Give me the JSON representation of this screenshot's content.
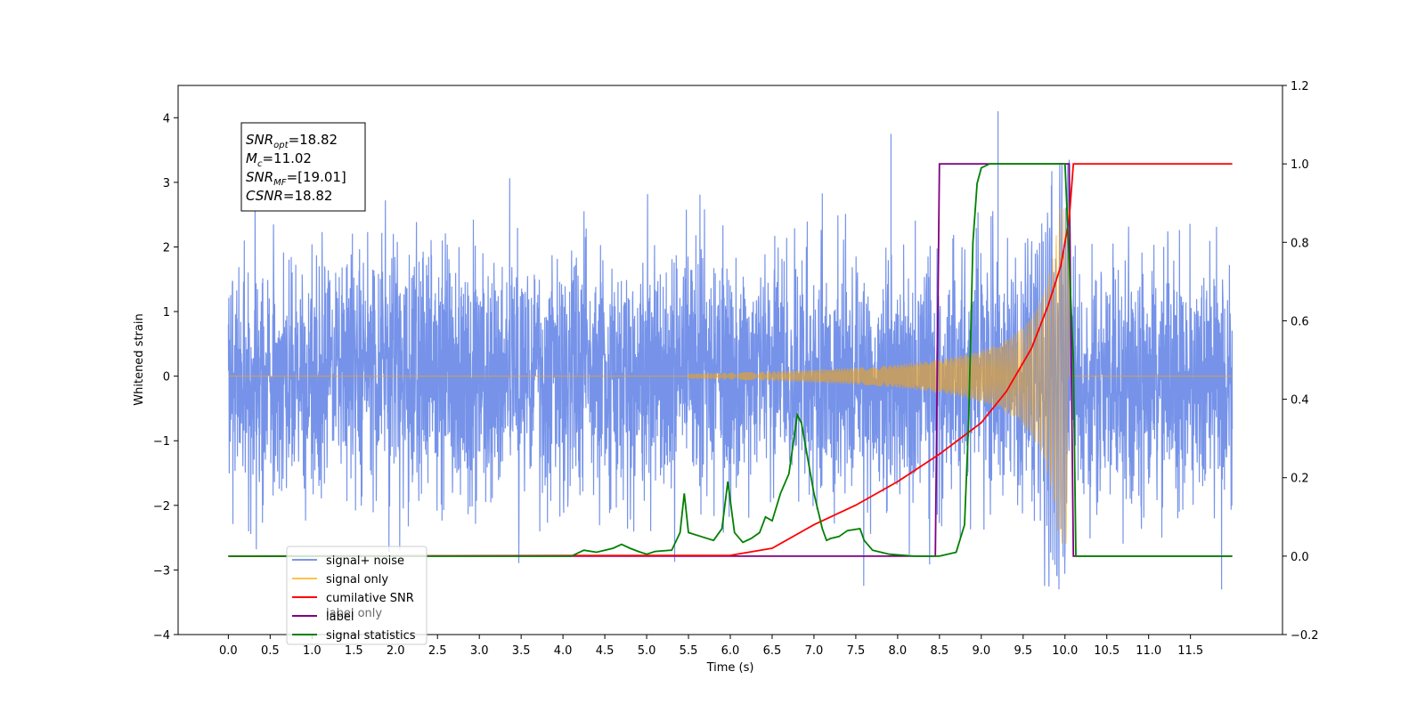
{
  "chart_data": {
    "type": "line",
    "xlabel": "Time (s)",
    "ylabel": "Whitened strain",
    "xlim": [
      -0.6,
      12.6
    ],
    "ylim": [
      -4,
      4.5
    ],
    "y2lim": [
      -0.2,
      1.2
    ],
    "x_ticks": [
      0.0,
      0.5,
      1.0,
      1.5,
      2.0,
      2.5,
      3.0,
      3.5,
      4.0,
      4.5,
      5.0,
      5.5,
      6.0,
      6.5,
      7.0,
      7.5,
      8.0,
      8.5,
      9.0,
      9.5,
      10.0,
      10.5,
      11.0,
      11.5
    ],
    "x_tick_labels": [
      "0.0",
      "0.5",
      "1.0",
      "1.5",
      "2.0",
      "2.5",
      "3.0",
      "3.5",
      "4.0",
      "4.5",
      "5.0",
      "5.5",
      "6.0",
      "6.5",
      "7.0",
      "7.5",
      "8.0",
      "8.5",
      "9.0",
      "9.5",
      "10.0",
      "10.5",
      "11.0",
      "11.5"
    ],
    "y_ticks": [
      -4,
      -3,
      -2,
      -1,
      0,
      1,
      2,
      3,
      4
    ],
    "y_tick_labels": [
      "−4",
      "−3",
      "−2",
      "−1",
      "0",
      "1",
      "2",
      "3",
      "4"
    ],
    "y2_ticks": [
      -0.2,
      0.0,
      0.2,
      0.4,
      0.6,
      0.8,
      1.0,
      1.2
    ],
    "y2_tick_labels": [
      "−0.2",
      "0.0",
      "0.2",
      "0.4",
      "0.6",
      "0.8",
      "1.0",
      "1.2"
    ],
    "info_box": [
      {
        "main": "SNR",
        "sub": "opt",
        "rest": "=18.82"
      },
      {
        "main": "M",
        "sub": "c",
        "rest": "=11.02"
      },
      {
        "main": "SNR",
        "sub": "MF",
        "rest": "=[19.01]"
      },
      {
        "main": "CSNR",
        "sub": "",
        "rest": "=18.82"
      }
    ],
    "legend": {
      "placement": "lower-left",
      "entries": [
        {
          "label": "signal+ noise",
          "color": "#4169e1"
        },
        {
          "label": "signal only",
          "color": "#ffa500"
        },
        {
          "label": "cumilative SNR",
          "color": "#ff0000"
        },
        {
          "label": "label",
          "color": "#800080"
        },
        {
          "label": "signal statistics",
          "color": "#008000"
        }
      ]
    },
    "hidden_legend_text": "label only",
    "series": [
      {
        "name": "signal+ noise",
        "axis": "left",
        "color": "#4169e1",
        "description": "whitened noise with std about 1.0 over 0–12 s, max spike about 4.1 near 9.2 s"
      },
      {
        "name": "signal only",
        "axis": "left",
        "color": "#ffa500",
        "description": "chirp, amplitude near 0 before 6 s, grows to about 2.6 at 10.05 s, then 0"
      },
      {
        "name": "cumilative SNR",
        "axis": "right",
        "color": "#ff0000",
        "x": [
          0,
          6.0,
          6.5,
          7.0,
          7.5,
          8.0,
          8.5,
          9.0,
          9.3,
          9.6,
          9.8,
          9.95,
          10.05,
          10.1,
          12.0
        ],
        "y": [
          0,
          0.002,
          0.02,
          0.08,
          0.13,
          0.19,
          0.26,
          0.34,
          0.42,
          0.53,
          0.64,
          0.74,
          0.86,
          1.0,
          1.0
        ]
      },
      {
        "name": "label",
        "axis": "right",
        "color": "#800080",
        "x": [
          0,
          8.45,
          8.5,
          10.05,
          10.1,
          12.0
        ],
        "y": [
          0,
          0,
          1.0,
          1.0,
          0,
          0
        ]
      },
      {
        "name": "signal statistics",
        "axis": "right",
        "color": "#008000",
        "x": [
          0,
          4.1,
          4.25,
          4.4,
          4.6,
          4.7,
          4.8,
          4.9,
          5.0,
          5.1,
          5.3,
          5.4,
          5.45,
          5.5,
          5.65,
          5.8,
          5.9,
          5.97,
          6.05,
          6.15,
          6.25,
          6.35,
          6.42,
          6.5,
          6.6,
          6.7,
          6.8,
          6.85,
          6.9,
          7.0,
          7.1,
          7.15,
          7.2,
          7.3,
          7.4,
          7.55,
          7.6,
          7.7,
          7.9,
          8.2,
          8.5,
          8.7,
          8.8,
          8.85,
          8.9,
          8.95,
          9.0,
          9.1,
          9.2,
          10.0,
          10.1,
          10.13,
          12.0
        ],
        "y": [
          0,
          0,
          0.015,
          0.01,
          0.02,
          0.03,
          0.02,
          0.012,
          0.005,
          0.012,
          0.015,
          0.06,
          0.16,
          0.06,
          0.05,
          0.04,
          0.07,
          0.19,
          0.06,
          0.035,
          0.045,
          0.06,
          0.1,
          0.09,
          0.16,
          0.21,
          0.36,
          0.34,
          0.28,
          0.16,
          0.07,
          0.04,
          0.045,
          0.05,
          0.065,
          0.07,
          0.04,
          0.015,
          0.005,
          0.0,
          0.0,
          0.01,
          0.08,
          0.35,
          0.8,
          0.95,
          0.99,
          1.0,
          1.0,
          1.0,
          0.5,
          0.0,
          0.0
        ]
      }
    ]
  }
}
